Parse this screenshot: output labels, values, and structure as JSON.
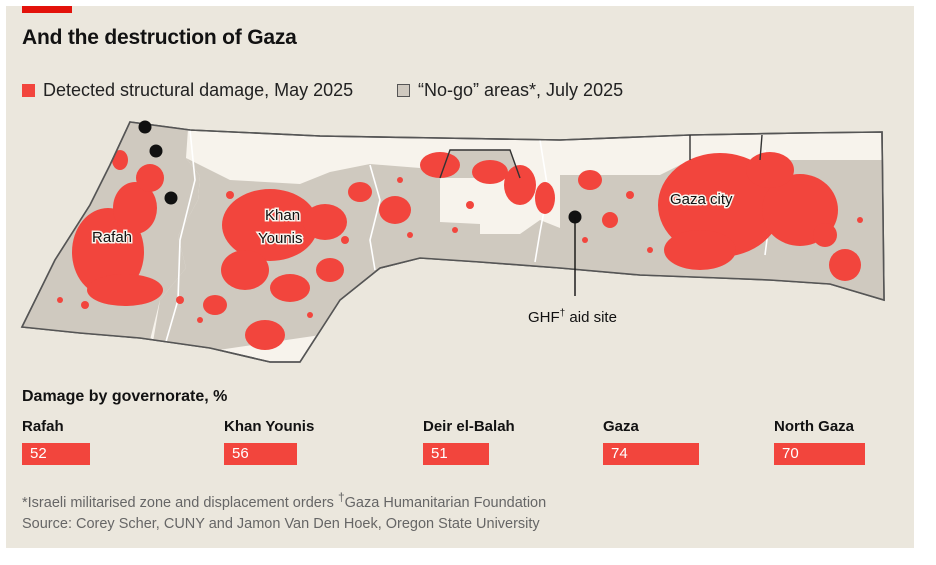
{
  "title": "And the destruction of Gaza",
  "legend": {
    "damage": {
      "label": "Detected structural damage, May 2025",
      "color": "#f2453d"
    },
    "nogo": {
      "label": "“No-go” areas*, July 2025",
      "color": "#cfc9bf"
    }
  },
  "map": {
    "labels": {
      "rafah": "Rafah",
      "khan_younis_line1": "Khan",
      "khan_younis_line2": "Younis",
      "gaza_city": "Gaza city",
      "ghf_main": "GHF",
      "ghf_dagger": "†",
      "ghf_rest": " aid site"
    },
    "ghf_aid_sites_count": 4
  },
  "governorates": {
    "title": "Damage by governorate, %",
    "items": [
      {
        "name": "Rafah",
        "value": 52
      },
      {
        "name": "Khan Younis",
        "value": 56
      },
      {
        "name": "Deir el-Balah",
        "value": 51
      },
      {
        "name": "Gaza",
        "value": 74
      },
      {
        "name": "North Gaza",
        "value": 70
      }
    ]
  },
  "footnote": {
    "part1": "*Israeli militarised zone and displacement orders ",
    "dagger": "†",
    "part2": "Gaza Humanitarian Foundation"
  },
  "source": "Source: Corey Scher, CUNY and Jamon Van Den Hoek, Oregon State University"
}
